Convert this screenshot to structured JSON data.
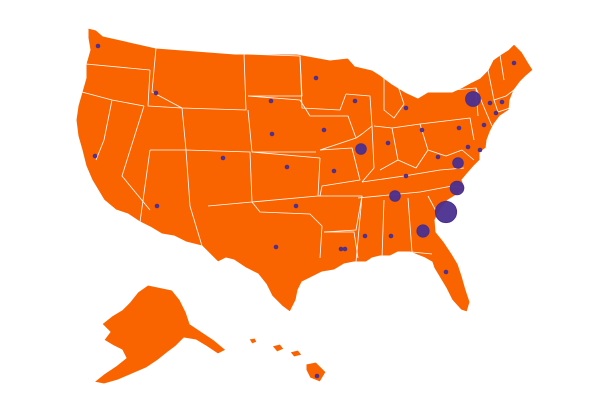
{
  "map": {
    "region": "United States",
    "colors": {
      "land": "#fa6400",
      "borders": "#ffffff",
      "bubbles": "#4a2f8f",
      "background": "#ffffff"
    },
    "bubble_legend": null
  },
  "bubbles": [
    {
      "state": "Washington",
      "value": 1
    },
    {
      "state": "Idaho",
      "value": 1
    },
    {
      "state": "California",
      "value": 1
    },
    {
      "state": "Arizona",
      "value": 1
    },
    {
      "state": "Colorado",
      "value": 1
    },
    {
      "state": "Minnesota",
      "value": 1
    },
    {
      "state": "South Dakota",
      "value": 1
    },
    {
      "state": "Nebraska",
      "value": 1
    },
    {
      "state": "Kansas",
      "value": 1
    },
    {
      "state": "Oklahoma",
      "value": 1
    },
    {
      "state": "Texas",
      "value": 1
    },
    {
      "state": "Iowa",
      "value": 1
    },
    {
      "state": "Missouri",
      "value": 1
    },
    {
      "state": "Wisconsin",
      "value": 1
    },
    {
      "state": "Illinois",
      "value": 2
    },
    {
      "state": "Michigan",
      "value": 1
    },
    {
      "state": "Indiana",
      "value": 1
    },
    {
      "state": "Ohio",
      "value": 1
    },
    {
      "state": "Kentucky",
      "value": 1
    },
    {
      "state": "Tennessee",
      "value": 2
    },
    {
      "state": "Arkansas",
      "value": 1
    },
    {
      "state": "Louisiana",
      "value": 1
    },
    {
      "state": "Mississippi",
      "value": 1
    },
    {
      "state": "Alabama",
      "value": 1
    },
    {
      "state": "Georgia",
      "value": 3
    },
    {
      "state": "Florida",
      "value": 1
    },
    {
      "state": "South Carolina",
      "value": 12
    },
    {
      "state": "North Carolina",
      "value": 4
    },
    {
      "state": "Virginia",
      "value": 2
    },
    {
      "state": "West Virginia",
      "value": 1
    },
    {
      "state": "Pennsylvania",
      "value": 1
    },
    {
      "state": "New York",
      "value": 5
    },
    {
      "state": "Maryland",
      "value": 1
    },
    {
      "state": "Delaware",
      "value": 1
    },
    {
      "state": "New Jersey",
      "value": 1
    },
    {
      "state": "Connecticut",
      "value": 1
    },
    {
      "state": "Massachusetts",
      "value": 1
    },
    {
      "state": "Vermont",
      "value": 1
    },
    {
      "state": "Maine",
      "value": 1
    },
    {
      "state": "Hawaii",
      "value": 1
    }
  ]
}
